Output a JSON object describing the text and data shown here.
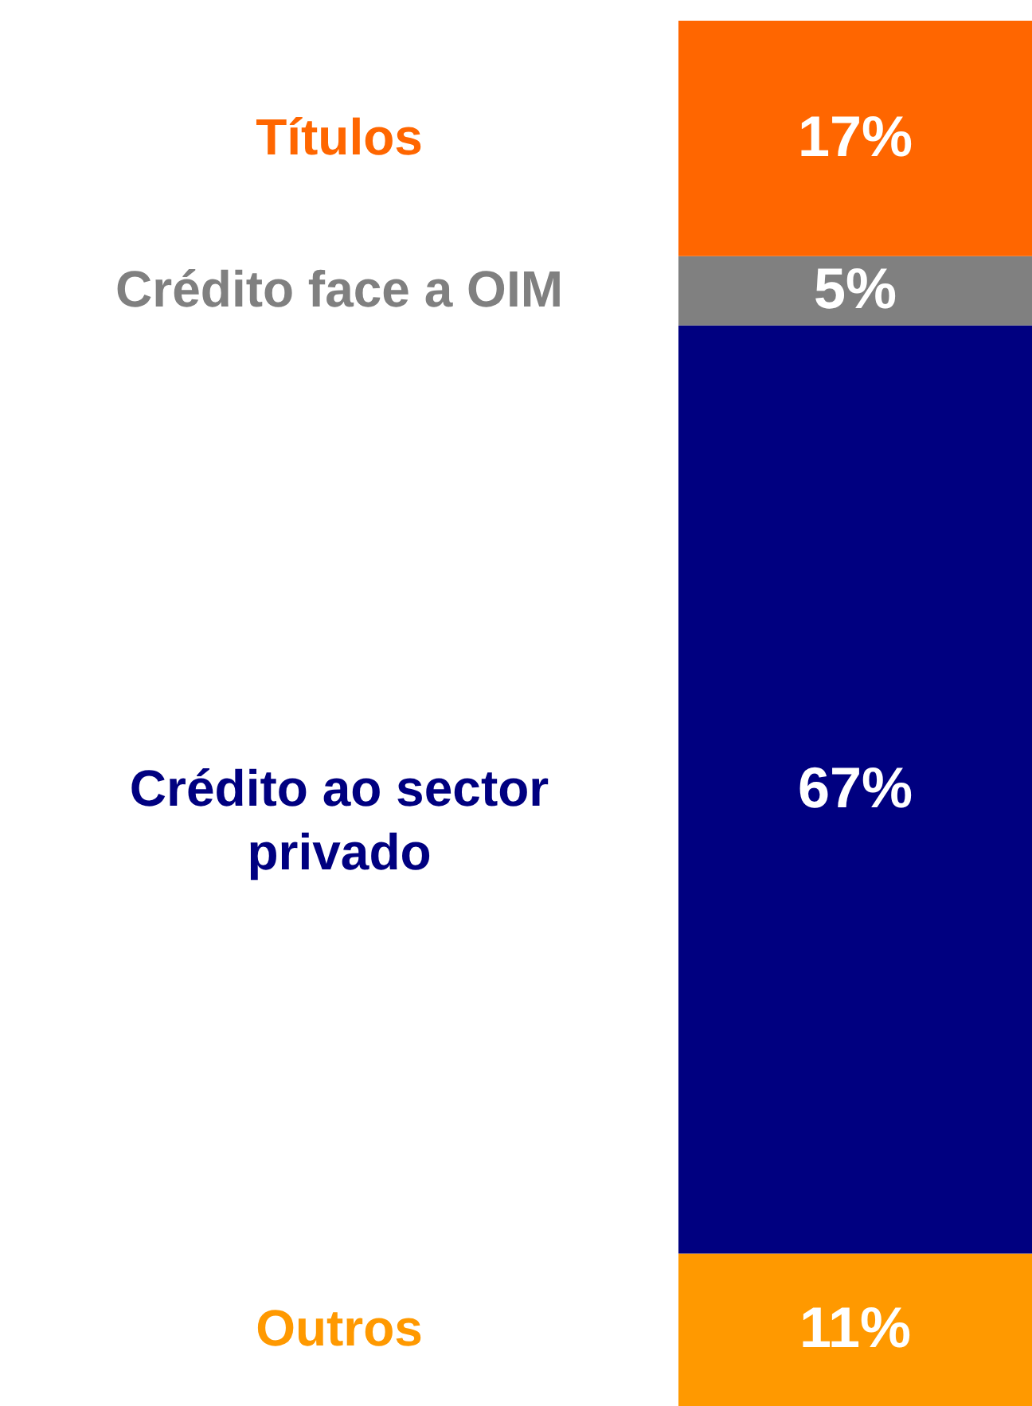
{
  "chart_data": {
    "type": "bar",
    "stacked": true,
    "categories": [
      null
    ],
    "series": [
      {
        "name": "Outros",
        "color": "#ff9900",
        "values": [
          11
        ],
        "value_labels": [
          "11%"
        ]
      },
      {
        "name": "Crédito ao sector privado",
        "color": "#000080",
        "values": [
          67
        ],
        "value_labels": [
          "67%"
        ]
      },
      {
        "name": "Crédito face a OIM",
        "color": "#808080",
        "values": [
          5
        ],
        "value_labels": [
          "5%"
        ]
      },
      {
        "name": "Títulos",
        "color": "#ff6600",
        "values": [
          17
        ],
        "value_labels": [
          "17%"
        ]
      }
    ]
  }
}
